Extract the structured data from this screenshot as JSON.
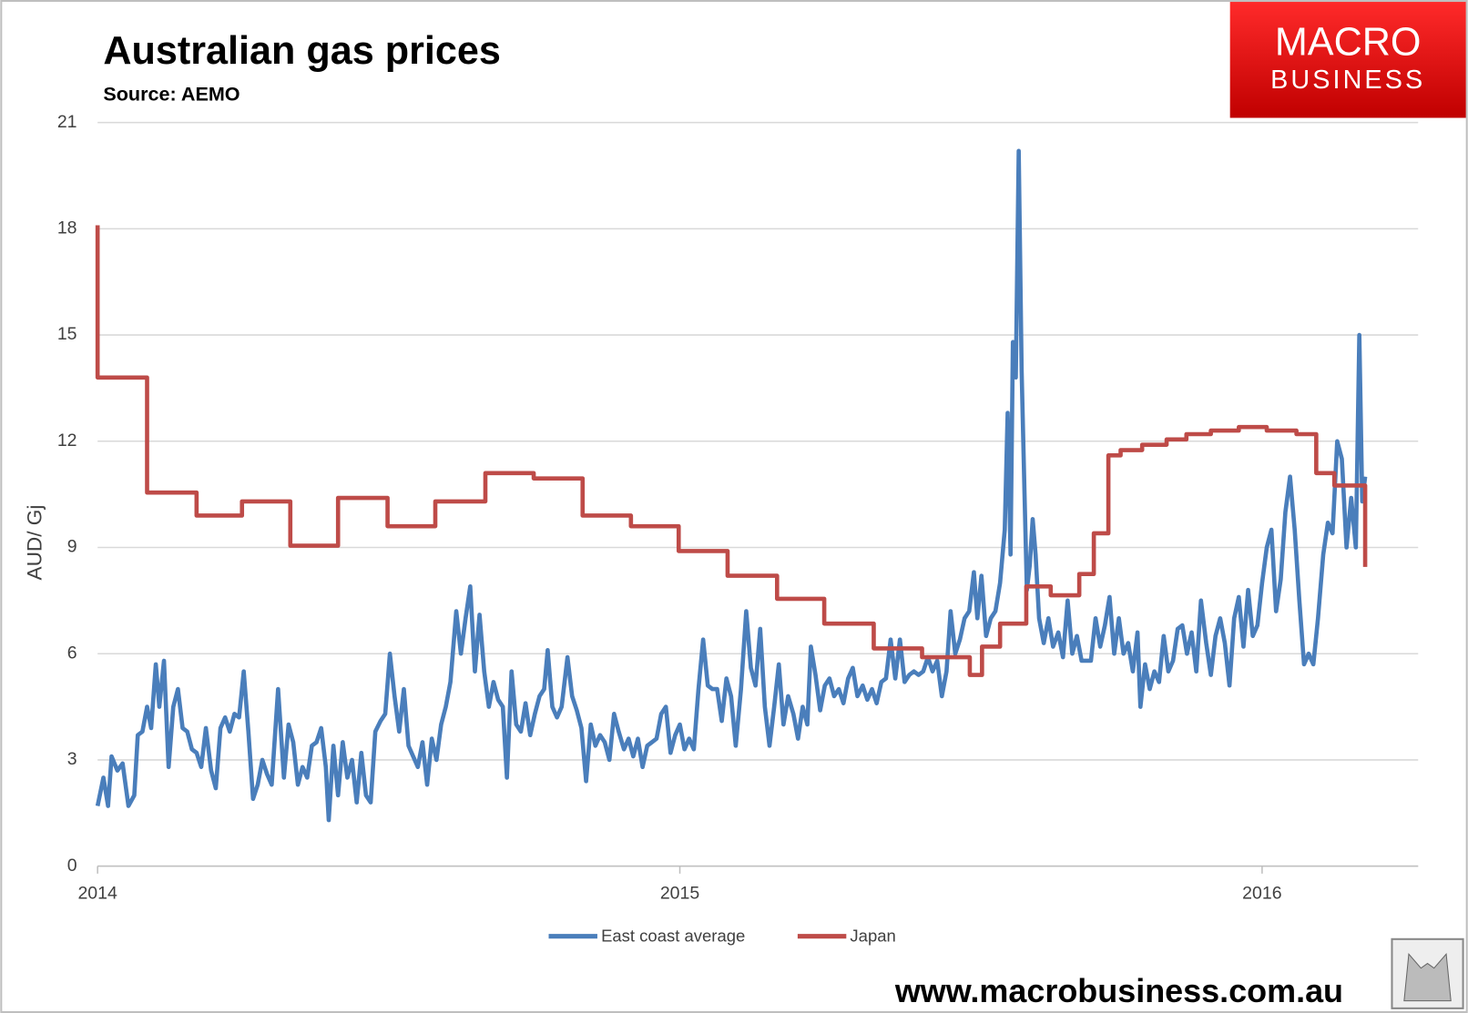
{
  "chart_data": {
    "type": "line",
    "title": "Australian gas prices",
    "subtitle": "Source: AEMO",
    "y_label": "AUD/ Gj",
    "xlim": [
      2014,
      2016.268
    ],
    "xticks": [
      2014,
      2015,
      2016
    ],
    "ylim": [
      0,
      21
    ],
    "yticks": [
      0,
      3,
      6,
      9,
      12,
      15,
      18,
      21
    ],
    "grid": true,
    "legend": "bottom",
    "series": [
      {
        "name": "East coast average",
        "color": "#4a7ebb",
        "x": [
          2014.0,
          2014.01,
          2014.018,
          2014.024,
          2014.034,
          2014.043,
          2014.053,
          2014.063,
          2014.069,
          2014.077,
          2014.085,
          2014.092,
          2014.1,
          2014.106,
          2014.114,
          2014.122,
          2014.13,
          2014.138,
          2014.146,
          2014.154,
          2014.162,
          2014.17,
          2014.178,
          2014.186,
          2014.195,
          2014.203,
          2014.211,
          2014.219,
          2014.227,
          2014.235,
          2014.243,
          2014.251,
          2014.259,
          2014.267,
          2014.275,
          2014.283,
          2014.291,
          2014.299,
          2014.31,
          2014.32,
          2014.328,
          2014.336,
          2014.344,
          2014.352,
          2014.36,
          2014.368,
          2014.376,
          2014.384,
          2014.392,
          2014.397,
          2014.405,
          2014.413,
          2014.421,
          2014.429,
          2014.437,
          2014.445,
          2014.453,
          2014.461,
          2014.469,
          2014.477,
          2014.486,
          2014.494,
          2014.502,
          2014.51,
          2014.518,
          2014.526,
          2014.534,
          2014.542,
          2014.55,
          2014.558,
          2014.566,
          2014.574,
          2014.582,
          2014.59,
          2014.598,
          2014.606,
          2014.616,
          2014.624,
          2014.632,
          2014.64,
          2014.648,
          2014.656,
          2014.664,
          2014.672,
          2014.68,
          2014.688,
          2014.696,
          2014.703,
          2014.711,
          2014.719,
          2014.727,
          2014.735,
          2014.743,
          2014.751,
          2014.759,
          2014.767,
          2014.773,
          2014.781,
          2014.789,
          2014.797,
          2014.807,
          2014.815,
          2014.823,
          2014.831,
          2014.839,
          2014.847,
          2014.855,
          2014.863,
          2014.871,
          2014.879,
          2014.887,
          2014.895,
          2014.904,
          2014.912,
          2014.92,
          2014.928,
          2014.936,
          2014.944,
          2014.952,
          2014.96,
          2014.968,
          2014.976,
          2014.984,
          2014.992,
          2015.0,
          2015.008,
          2015.016,
          2015.024,
          2015.032,
          2015.04,
          2015.048,
          2015.056,
          2015.064,
          2015.072,
          2015.08,
          2015.088,
          2015.096,
          2015.105,
          2015.114,
          2015.122,
          2015.13,
          2015.138,
          2015.146,
          2015.154,
          2015.162,
          2015.17,
          2015.178,
          2015.186,
          2015.195,
          2015.203,
          2015.211,
          2015.219,
          2015.225,
          2015.233,
          2015.241,
          2015.249,
          2015.257,
          2015.265,
          2015.273,
          2015.281,
          2015.289,
          2015.297,
          2015.305,
          2015.314,
          2015.322,
          2015.33,
          2015.338,
          2015.346,
          2015.354,
          2015.362,
          2015.37,
          2015.378,
          2015.386,
          2015.394,
          2015.402,
          2015.41,
          2015.418,
          2015.426,
          2015.434,
          2015.442,
          2015.45,
          2015.458,
          2015.465,
          2015.473,
          2015.481,
          2015.489,
          2015.497,
          2015.505,
          2015.511,
          2015.518,
          2015.526,
          2015.534,
          2015.542,
          2015.55,
          2015.558,
          2015.563,
          2015.568,
          2015.572,
          2015.577,
          2015.582,
          2015.587,
          2015.592,
          2015.596,
          2015.601,
          2015.606,
          2015.611,
          2015.617,
          2015.625,
          2015.633,
          2015.641,
          2015.65,
          2015.658,
          2015.666,
          2015.674,
          2015.682,
          2015.69,
          2015.698,
          2015.706,
          2015.714,
          2015.722,
          2015.73,
          2015.738,
          2015.746,
          2015.754,
          2015.762,
          2015.77,
          2015.778,
          2015.786,
          2015.791,
          2015.799,
          2015.807,
          2015.815,
          2015.823,
          2015.831,
          2015.839,
          2015.847,
          2015.855,
          2015.863,
          2015.871,
          2015.879,
          2015.887,
          2015.895,
          2015.904,
          2015.912,
          2015.92,
          2015.928,
          2015.936,
          2015.944,
          2015.952,
          2015.96,
          2015.968,
          2015.976,
          2015.984,
          2015.992,
          2016.0,
          2016.008,
          2016.016,
          2016.024,
          2016.032,
          2016.04,
          2016.048,
          2016.056,
          2016.064,
          2016.072,
          2016.08,
          2016.088,
          2016.096,
          2016.105,
          2016.113,
          2016.121,
          2016.129,
          2016.137,
          2016.145,
          2016.153,
          2016.161,
          2016.167,
          2016.172,
          2016.177
        ],
        "values": [
          1.7,
          2.5,
          1.7,
          3.1,
          2.7,
          2.9,
          1.7,
          2.0,
          3.7,
          3.8,
          4.5,
          3.9,
          5.7,
          4.5,
          5.8,
          2.8,
          4.5,
          5.0,
          3.9,
          3.8,
          3.3,
          3.2,
          2.8,
          3.9,
          2.7,
          2.2,
          3.9,
          4.2,
          3.8,
          4.3,
          4.2,
          5.5,
          3.8,
          1.9,
          2.3,
          3.0,
          2.6,
          2.3,
          5.0,
          2.5,
          4.0,
          3.5,
          2.3,
          2.8,
          2.5,
          3.4,
          3.5,
          3.9,
          2.8,
          1.3,
          3.4,
          2.0,
          3.5,
          2.5,
          3.0,
          1.8,
          3.2,
          2.0,
          1.8,
          3.8,
          4.1,
          4.3,
          6.0,
          4.8,
          3.8,
          5.0,
          3.4,
          3.1,
          2.8,
          3.5,
          2.3,
          3.6,
          3.0,
          4.0,
          4.5,
          5.2,
          7.2,
          6.0,
          7.0,
          7.9,
          5.5,
          7.1,
          5.5,
          4.5,
          5.2,
          4.7,
          4.5,
          2.5,
          5.5,
          4.0,
          3.8,
          4.6,
          3.7,
          4.3,
          4.8,
          5.0,
          6.1,
          4.5,
          4.2,
          4.5,
          5.9,
          4.8,
          4.4,
          3.9,
          2.4,
          4.0,
          3.4,
          3.7,
          3.5,
          3.0,
          4.3,
          3.8,
          3.3,
          3.6,
          3.1,
          3.6,
          2.8,
          3.4,
          3.5,
          3.6,
          4.3,
          4.5,
          3.2,
          3.7,
          4.0,
          3.3,
          3.6,
          3.3,
          5.0,
          6.4,
          5.1,
          5.0,
          5.0,
          4.1,
          5.3,
          4.8,
          3.4,
          5.0,
          7.2,
          5.6,
          5.1,
          6.7,
          4.5,
          3.4,
          4.5,
          5.7,
          4.0,
          4.8,
          4.3,
          3.6,
          4.5,
          4.0,
          6.2,
          5.4,
          4.4,
          5.1,
          5.3,
          4.8,
          5.0,
          4.6,
          5.3,
          5.6,
          4.8,
          5.1,
          4.7,
          5.0,
          4.6,
          5.2,
          5.3,
          6.4,
          5.3,
          6.4,
          5.2,
          5.4,
          5.5,
          5.4,
          5.5,
          5.9,
          5.5,
          5.8,
          4.8,
          5.5,
          7.2,
          6.0,
          6.4,
          7.0,
          7.2,
          8.3,
          7.0,
          8.2,
          6.5,
          7.0,
          7.2,
          8.0,
          9.5,
          12.8,
          8.8,
          14.8,
          13.8,
          20.2,
          14.0,
          10.5,
          7.8,
          8.5,
          9.8,
          8.8,
          7.0,
          6.3,
          7.0,
          6.2,
          6.6,
          5.9,
          7.5,
          6.0,
          6.5,
          5.8,
          5.8,
          5.8,
          7.0,
          6.2,
          6.8,
          7.6,
          6.0,
          7.0,
          6.0,
          6.3,
          5.5,
          6.6,
          4.5,
          5.7,
          5.0,
          5.5,
          5.2,
          6.5,
          5.5,
          5.8,
          6.7,
          6.8,
          6.0,
          6.6,
          5.5,
          7.5,
          6.3,
          5.4,
          6.5,
          7.0,
          6.3,
          5.1,
          7.0,
          7.6,
          6.2,
          7.8,
          6.5,
          6.8,
          8.0,
          9.0,
          9.5,
          7.2,
          8.1,
          10.0,
          11.0,
          9.5,
          7.5,
          5.7,
          6.0,
          5.7,
          7.0,
          8.8,
          9.7,
          9.4,
          12.0,
          11.5,
          9.0,
          10.4,
          9.0,
          15.0,
          10.3,
          11.0
        ]
      },
      {
        "name": "Japan",
        "color": "#be4b48",
        "step": true,
        "x": [
          2014.0,
          2014.0,
          2014.085,
          2014.17,
          2014.248,
          2014.331,
          2014.413,
          2014.498,
          2014.58,
          2014.666,
          2014.749,
          2014.833,
          2014.916,
          2014.998,
          2015.082,
          2015.167,
          2015.248,
          2015.333,
          2015.416,
          2015.498,
          2015.519,
          2015.55,
          2015.595,
          2015.637,
          2015.686,
          2015.711,
          2015.736,
          2015.757,
          2015.794,
          2015.836,
          2015.87,
          2015.912,
          2015.96,
          2016.008,
          2016.059,
          2016.093,
          2016.124,
          2016.177
        ],
        "values": [
          18.1,
          13.8,
          10.55,
          9.9,
          10.3,
          9.05,
          10.4,
          9.6,
          10.3,
          11.1,
          10.95,
          9.9,
          9.6,
          8.9,
          8.2,
          7.55,
          6.85,
          6.15,
          5.9,
          5.4,
          6.2,
          6.85,
          7.9,
          7.65,
          8.25,
          9.4,
          11.6,
          11.75,
          11.9,
          12.05,
          12.2,
          12.3,
          12.4,
          12.3,
          12.2,
          11.1,
          10.75,
          8.45
        ]
      }
    ]
  },
  "logo": {
    "line1": "MACRO",
    "line2": "BUSINESS"
  },
  "footer": "www.macrobusiness.com.au"
}
